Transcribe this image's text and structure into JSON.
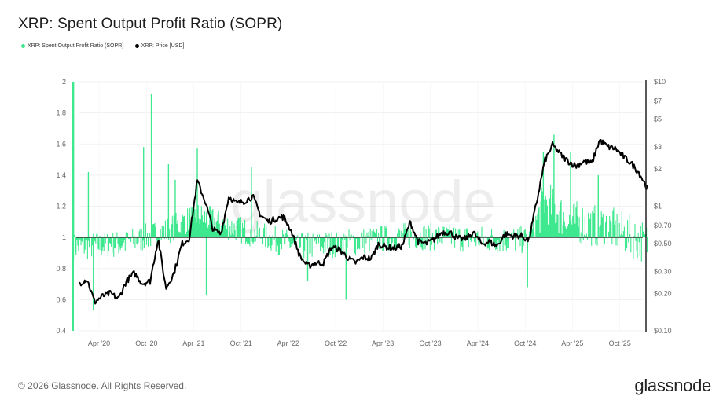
{
  "title": "XRP: Spent Output Profit Ratio (SOPR)",
  "legend": [
    {
      "label": "XRP: Spent Output Profit Ratio (SOPR)",
      "color": "#3ee88e"
    },
    {
      "label": "XRP: Price [USD]",
      "color": "#000000"
    }
  ],
  "watermark": "glassnode",
  "footer": {
    "copyright": "© 2026 Glassnode. All Rights Reserved.",
    "logo": "glassnode"
  },
  "colors": {
    "sopr": "#3ee88e",
    "price": "#000000",
    "baseline": "#333333",
    "grid": "#eeeeee",
    "axis": "#222222"
  },
  "chart_data": {
    "type": "line",
    "title": "XRP: Spent Output Profit Ratio (SOPR)",
    "xlabel": "",
    "y_left": {
      "label": "SOPR",
      "range": [
        0.4,
        2.0
      ],
      "ticks": [
        "2",
        "1.8",
        "1.6",
        "1.4",
        "1.2",
        "1",
        "0.8",
        "0.6",
        "0.4"
      ],
      "scale": "linear"
    },
    "y_right": {
      "label": "Price [USD]",
      "range": [
        0.1,
        10
      ],
      "ticks": [
        "$10",
        "$7",
        "$5",
        "$3",
        "$2",
        "$1",
        "$0.70",
        "$0.50",
        "$0.30",
        "$0.20",
        "$0.10"
      ],
      "tick_values": [
        10,
        7,
        5,
        3,
        2,
        1,
        0.7,
        0.5,
        0.3,
        0.2,
        0.1
      ],
      "scale": "log"
    },
    "x_ticks": [
      "Apr '20",
      "Oct '20",
      "Apr '21",
      "Oct '21",
      "Apr '22",
      "Oct '22",
      "Apr '23",
      "Oct '23",
      "Apr '24",
      "Oct '24",
      "Apr '25",
      "Oct '25"
    ],
    "x_range": [
      "2019-12",
      "2026-01"
    ],
    "grid": true,
    "legend_position": "top-left",
    "reference_line": {
      "axis": "left",
      "value": 1.0
    },
    "series": [
      {
        "name": "XRP: Price [USD]",
        "axis": "right",
        "points": [
          [
            "2020-01",
            0.24
          ],
          [
            "2020-02",
            0.26
          ],
          [
            "2020-03",
            0.17
          ],
          [
            "2020-04",
            0.19
          ],
          [
            "2020-05",
            0.2
          ],
          [
            "2020-06",
            0.18
          ],
          [
            "2020-07",
            0.25
          ],
          [
            "2020-08",
            0.29
          ],
          [
            "2020-09",
            0.24
          ],
          [
            "2020-10",
            0.25
          ],
          [
            "2020-11",
            0.55
          ],
          [
            "2020-12",
            0.22
          ],
          [
            "2021-01",
            0.29
          ],
          [
            "2021-02",
            0.5
          ],
          [
            "2021-03",
            0.55
          ],
          [
            "2021-04",
            1.6
          ],
          [
            "2021-05",
            1.1
          ],
          [
            "2021-06",
            0.65
          ],
          [
            "2021-07",
            0.6
          ],
          [
            "2021-08",
            1.2
          ],
          [
            "2021-09",
            1.05
          ],
          [
            "2021-10",
            1.1
          ],
          [
            "2021-11",
            1.2
          ],
          [
            "2021-12",
            0.85
          ],
          [
            "2022-01",
            0.75
          ],
          [
            "2022-02",
            0.8
          ],
          [
            "2022-03",
            0.82
          ],
          [
            "2022-04",
            0.62
          ],
          [
            "2022-05",
            0.4
          ],
          [
            "2022-06",
            0.33
          ],
          [
            "2022-07",
            0.35
          ],
          [
            "2022-08",
            0.35
          ],
          [
            "2022-09",
            0.47
          ],
          [
            "2022-10",
            0.45
          ],
          [
            "2022-11",
            0.39
          ],
          [
            "2022-12",
            0.35
          ],
          [
            "2023-01",
            0.39
          ],
          [
            "2023-02",
            0.38
          ],
          [
            "2023-03",
            0.5
          ],
          [
            "2023-04",
            0.47
          ],
          [
            "2023-05",
            0.46
          ],
          [
            "2023-06",
            0.48
          ],
          [
            "2023-07",
            0.75
          ],
          [
            "2023-08",
            0.52
          ],
          [
            "2023-09",
            0.5
          ],
          [
            "2023-10",
            0.54
          ],
          [
            "2023-11",
            0.62
          ],
          [
            "2023-12",
            0.62
          ],
          [
            "2024-01",
            0.55
          ],
          [
            "2024-02",
            0.55
          ],
          [
            "2024-03",
            0.62
          ],
          [
            "2024-04",
            0.5
          ],
          [
            "2024-05",
            0.52
          ],
          [
            "2024-06",
            0.48
          ],
          [
            "2024-07",
            0.6
          ],
          [
            "2024-08",
            0.58
          ],
          [
            "2024-09",
            0.58
          ],
          [
            "2024-10",
            0.53
          ],
          [
            "2024-11",
            1.1
          ],
          [
            "2024-12",
            2.3
          ],
          [
            "2025-01",
            3.1
          ],
          [
            "2025-02",
            2.6
          ],
          [
            "2025-03",
            2.3
          ],
          [
            "2025-04",
            2.1
          ],
          [
            "2025-05",
            2.3
          ],
          [
            "2025-06",
            2.2
          ],
          [
            "2025-07",
            3.4
          ],
          [
            "2025-08",
            3.0
          ],
          [
            "2025-09",
            2.9
          ],
          [
            "2025-10",
            2.5
          ],
          [
            "2025-11",
            2.2
          ],
          [
            "2025-12",
            1.85
          ],
          [
            "2026-01",
            1.4
          ]
        ]
      },
      {
        "name": "XRP: Spent Output Profit Ratio (SOPR)",
        "axis": "left",
        "baseline_by_period": [
          [
            "2020-01",
            0.95
          ],
          [
            "2020-07",
            0.97
          ],
          [
            "2020-12",
            1.05
          ],
          [
            "2021-04",
            1.15
          ],
          [
            "2021-08",
            1.08
          ],
          [
            "2021-12",
            1.02
          ],
          [
            "2022-05",
            0.95
          ],
          [
            "2022-12",
            0.98
          ],
          [
            "2023-07",
            1.02
          ],
          [
            "2024-03",
            1.0
          ],
          [
            "2024-10",
            0.99
          ],
          [
            "2024-12",
            1.25
          ],
          [
            "2025-03",
            1.12
          ],
          [
            "2025-08",
            1.08
          ],
          [
            "2026-01",
            0.98
          ]
        ],
        "notable_spikes": [
          [
            "2019-12-25",
            2.0
          ],
          [
            "2020-02-20",
            1.42
          ],
          [
            "2020-09-20",
            1.58
          ],
          [
            "2020-10-20",
            1.92
          ],
          [
            "2020-12-25",
            1.47
          ],
          [
            "2021-01-20",
            1.37
          ],
          [
            "2021-04-15",
            1.57
          ],
          [
            "2021-11-10",
            1.45
          ],
          [
            "2024-12-10",
            1.55
          ],
          [
            "2025-01-20",
            1.66
          ],
          [
            "2025-03-25",
            1.55
          ],
          [
            "2025-07-10",
            1.4
          ]
        ],
        "notable_dips": [
          [
            "2020-03-10",
            0.53
          ],
          [
            "2021-05-20",
            0.63
          ],
          [
            "2022-06-15",
            0.72
          ],
          [
            "2022-11-10",
            0.6
          ],
          [
            "2024-10-10",
            0.68
          ]
        ]
      }
    ]
  }
}
